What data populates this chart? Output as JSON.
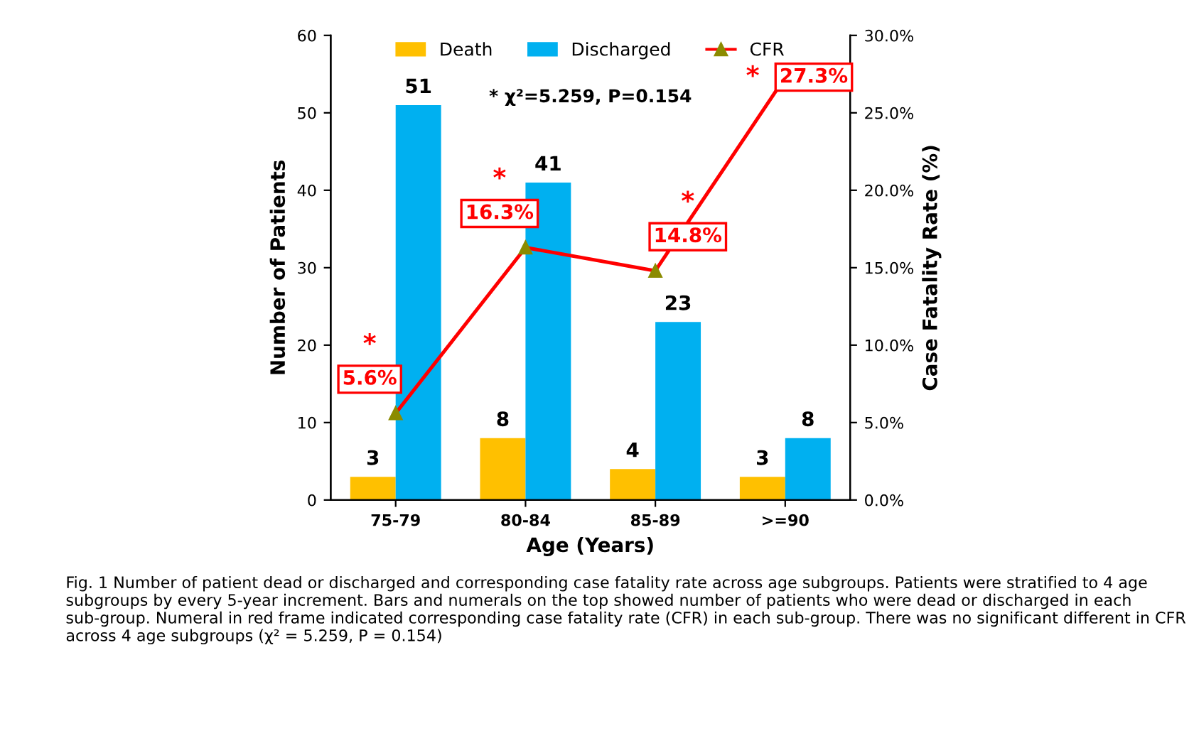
{
  "chart_data": {
    "type": "bar",
    "categories": [
      "75-79",
      "80-84",
      "85-89",
      ">=90"
    ],
    "xlabel": "Age (Years)",
    "ylabel": "Number of Patients",
    "y2label": "Case Fatality Rate (%)",
    "series": [
      {
        "name": "Death",
        "color": "#ffc000",
        "values": [
          3,
          8,
          4,
          3
        ],
        "value_labels": [
          "3",
          "8",
          "4",
          "3"
        ]
      },
      {
        "name": "Discharged",
        "color": "#00b0f0",
        "values": [
          51,
          41,
          23,
          8
        ],
        "value_labels": [
          "51",
          "41",
          "23",
          "8"
        ]
      },
      {
        "name": "CFR",
        "type": "line",
        "axis": "y2",
        "color": "#ff0000",
        "marker": "triangle",
        "values": [
          5.6,
          16.3,
          14.8,
          27.3
        ],
        "value_labels": [
          "5.6%",
          "16.3%",
          "14.8%",
          "27.3%"
        ]
      }
    ],
    "ylim": [
      0,
      60
    ],
    "yticks": [
      0,
      10,
      20,
      30,
      40,
      50,
      60
    ],
    "y2lim": [
      0,
      30
    ],
    "y2ticks": [
      {
        "value": 0,
        "label": "0.0%"
      },
      {
        "value": 5,
        "label": "5.0%"
      },
      {
        "value": 10,
        "label": "10.0%"
      },
      {
        "value": 15,
        "label": "15.0%"
      },
      {
        "value": 20,
        "label": "20.0%"
      },
      {
        "value": 25,
        "label": "25.0%"
      },
      {
        "value": 30,
        "label": "30.0%"
      }
    ],
    "legend": "top",
    "grid": false,
    "annotations": [
      "*",
      "*",
      "*",
      "*",
      "* χ²=5.259, P=0.154",
      "Fig. 1 Number of patient dead or discharged and corresponding case fatality rate across age subgroups. Patients were stratified to 4 age subgroups by every 5-year increment. Bars and numerals on the top showed number of patients who were dead or discharged in each sub-group. Numeral in red frame indicated corresponding case fatality rate (CFR) in each sub-group. There was no significant different in CFR across 4 age subgroups (χ² = 5.259, P = 0.154)"
    ]
  }
}
